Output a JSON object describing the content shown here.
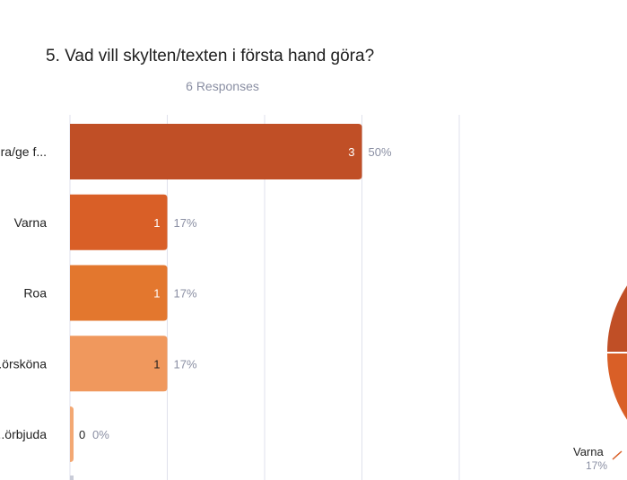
{
  "question": {
    "title": "5. Vad vill skylten/texten i första hand göra?",
    "responses": "6 Responses"
  },
  "chart_data": [
    {
      "type": "bar",
      "orientation": "horizontal",
      "categories": [
        "...ra/ge f...",
        "Varna",
        "Roa",
        "...örsköna",
        "...örbjuda"
      ],
      "values": [
        3,
        1,
        1,
        1,
        0
      ],
      "percent_labels": [
        "50%",
        "17%",
        "17%",
        "17%",
        "0%"
      ],
      "colors": [
        "#c04f26",
        "#d95f27",
        "#e3772e",
        "#f0985d",
        "#f3a873"
      ],
      "xlim": [
        0,
        4
      ],
      "grid": true
    },
    {
      "type": "pie",
      "labels": [
        "Varna"
      ],
      "percent_labels": [
        "17%"
      ],
      "colors": [
        "#c04f26",
        "#d95f27"
      ]
    }
  ],
  "colors": {
    "title": "#1f1f1f",
    "muted": "#8a8fa3",
    "grid": "#dfe1ec"
  }
}
